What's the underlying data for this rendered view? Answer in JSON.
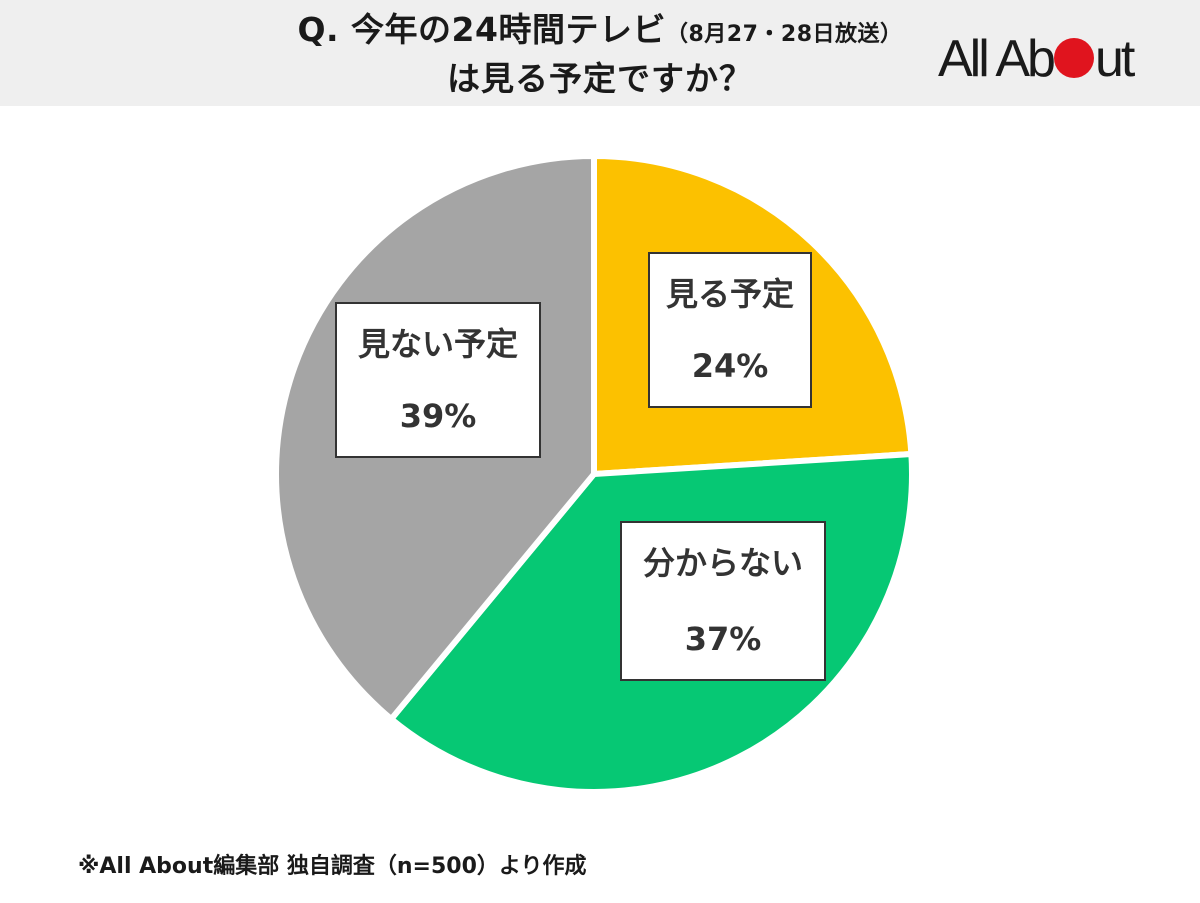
{
  "header": {
    "title_line1": "Q. 今年の24時間テレビ",
    "title_line1_sub": "（8月27・28日放送）",
    "title_line2": "は見る予定ですか？",
    "logo_part1": "All Ab",
    "logo_part2": "ut"
  },
  "chart_data": {
    "type": "pie",
    "title": "Q. 今年の24時間テレビ（8月27・28日放送）は見る予定ですか？",
    "categories": [
      "見る予定",
      "分からない",
      "見ない予定"
    ],
    "values": [
      24,
      37,
      39
    ],
    "value_labels": [
      "24%",
      "37%",
      "39%"
    ],
    "colors": [
      "#fcc100",
      "#06c874",
      "#a5a5a5"
    ],
    "start_angle_deg": 0,
    "direction": "clockwise"
  },
  "footer": {
    "source": "※All About編集部 独自調査（n=500）より作成"
  },
  "colors": {
    "header_bg": "#efefef",
    "logo_dot": "#e0141e"
  }
}
